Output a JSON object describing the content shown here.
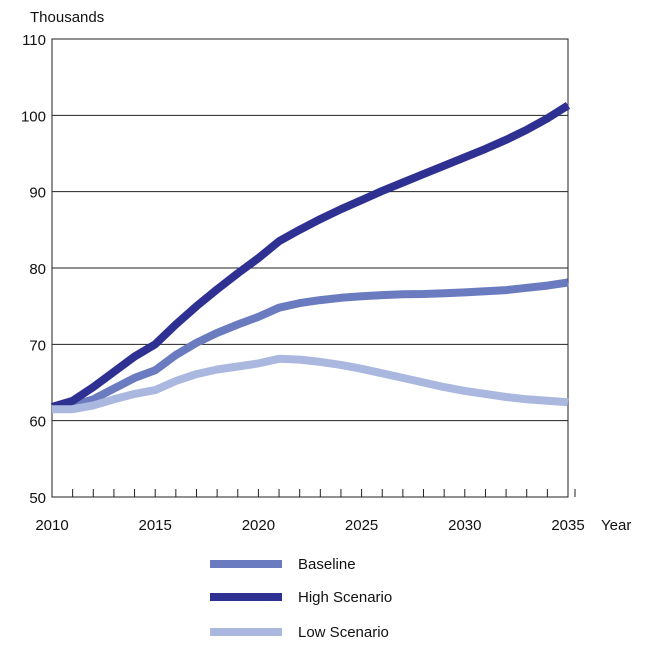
{
  "chart_data": {
    "type": "line",
    "y_unit_label": "Thousands",
    "x_unit_label": "Year",
    "xlim": [
      2010,
      2035
    ],
    "ylim": [
      50,
      110
    ],
    "x_ticks": [
      2010,
      2015,
      2020,
      2025,
      2030,
      2035
    ],
    "y_ticks": [
      50,
      60,
      70,
      80,
      90,
      100,
      110
    ],
    "grid": "horizontal",
    "legend_position": "bottom",
    "x": [
      2010,
      2011,
      2012,
      2013,
      2014,
      2015,
      2016,
      2017,
      2018,
      2019,
      2020,
      2021,
      2022,
      2023,
      2024,
      2025,
      2026,
      2027,
      2028,
      2029,
      2030,
      2031,
      2032,
      2033,
      2034,
      2035
    ],
    "series": [
      {
        "name": "Baseline",
        "color": "#6b7bbf",
        "values": [
          61.8,
          62.0,
          62.8,
          64.2,
          65.6,
          66.6,
          68.6,
          70.2,
          71.5,
          72.6,
          73.6,
          74.8,
          75.4,
          75.8,
          76.1,
          76.3,
          76.45,
          76.55,
          76.6,
          76.7,
          76.8,
          76.95,
          77.1,
          77.4,
          77.7,
          78.1
        ]
      },
      {
        "name": "High Scenario",
        "color": "#2e3192",
        "values": [
          61.8,
          62.6,
          64.4,
          66.4,
          68.4,
          70.0,
          72.6,
          75.0,
          77.2,
          79.3,
          81.3,
          83.5,
          85.0,
          86.4,
          87.7,
          88.9,
          90.1,
          91.2,
          92.3,
          93.4,
          94.5,
          95.6,
          96.8,
          98.1,
          99.6,
          101.3
        ]
      },
      {
        "name": "Low Scenario",
        "color": "#aab8e0",
        "values": [
          61.5,
          61.5,
          62.0,
          62.8,
          63.5,
          64.0,
          65.2,
          66.1,
          66.7,
          67.1,
          67.5,
          68.1,
          68.0,
          67.7,
          67.3,
          66.8,
          66.2,
          65.6,
          65.0,
          64.4,
          63.9,
          63.5,
          63.1,
          62.8,
          62.6,
          62.4
        ]
      }
    ]
  }
}
